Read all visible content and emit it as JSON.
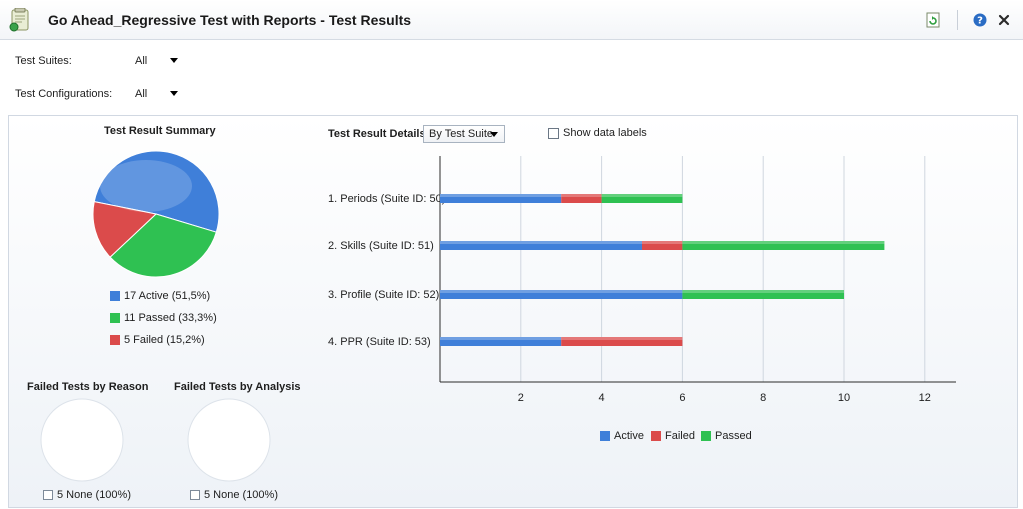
{
  "window": {
    "title": "Go Ahead_Regressive Test with Reports - Test Results",
    "icons": [
      "report-document-icon",
      "refresh-icon",
      "help-icon",
      "close-icon"
    ]
  },
  "filters": {
    "suites_label": "Test Suites:",
    "suites_value": "All",
    "configs_label": "Test Configurations:",
    "configs_value": "All"
  },
  "summary": {
    "title": "Test Result Summary",
    "legend": [
      {
        "label": "17 Active (51,5%)",
        "color": "#3f7fd9"
      },
      {
        "label": "11 Passed (33,3%)",
        "color": "#2fc152"
      },
      {
        "label": "5 Failed (15,2%)",
        "color": "#db4b4b"
      }
    ]
  },
  "failed_by_reason": {
    "title": "Failed Tests by Reason",
    "legend_label": "5 None (100%)"
  },
  "failed_by_analysis": {
    "title": "Failed Tests by Analysis",
    "legend_label": "5 None (100%)"
  },
  "details": {
    "title": "Test Result Details",
    "group_by_value": "By Test Suite",
    "show_labels_text": "Show data labels",
    "show_labels_checked": false,
    "legend": [
      "Active",
      "Failed",
      "Passed"
    ]
  },
  "colors": {
    "active": "#3f7fd9",
    "failed": "#db4b4b",
    "passed": "#2fc152"
  },
  "chart_data": [
    {
      "type": "pie",
      "title": "Test Result Summary",
      "categories": [
        "Active",
        "Passed",
        "Failed"
      ],
      "values": [
        17,
        11,
        5
      ]
    },
    {
      "type": "bar",
      "orientation": "horizontal",
      "stacked": true,
      "title": "Test Result Details",
      "categories": [
        "1. Periods (Suite ID: 50)",
        "2. Skills (Suite ID: 51)",
        "3. Profile (Suite ID: 52)",
        "4. PPR (Suite ID: 53)"
      ],
      "series": [
        {
          "name": "Active",
          "values": [
            3,
            5,
            6,
            3
          ]
        },
        {
          "name": "Failed",
          "values": [
            1,
            1,
            0,
            3
          ]
        },
        {
          "name": "Passed",
          "values": [
            2,
            5,
            4,
            0
          ]
        }
      ],
      "xlim": [
        0,
        12.5
      ],
      "xticks": [
        2,
        4,
        6,
        8,
        10,
        12
      ],
      "grid": true,
      "legend": "bottom"
    }
  ]
}
